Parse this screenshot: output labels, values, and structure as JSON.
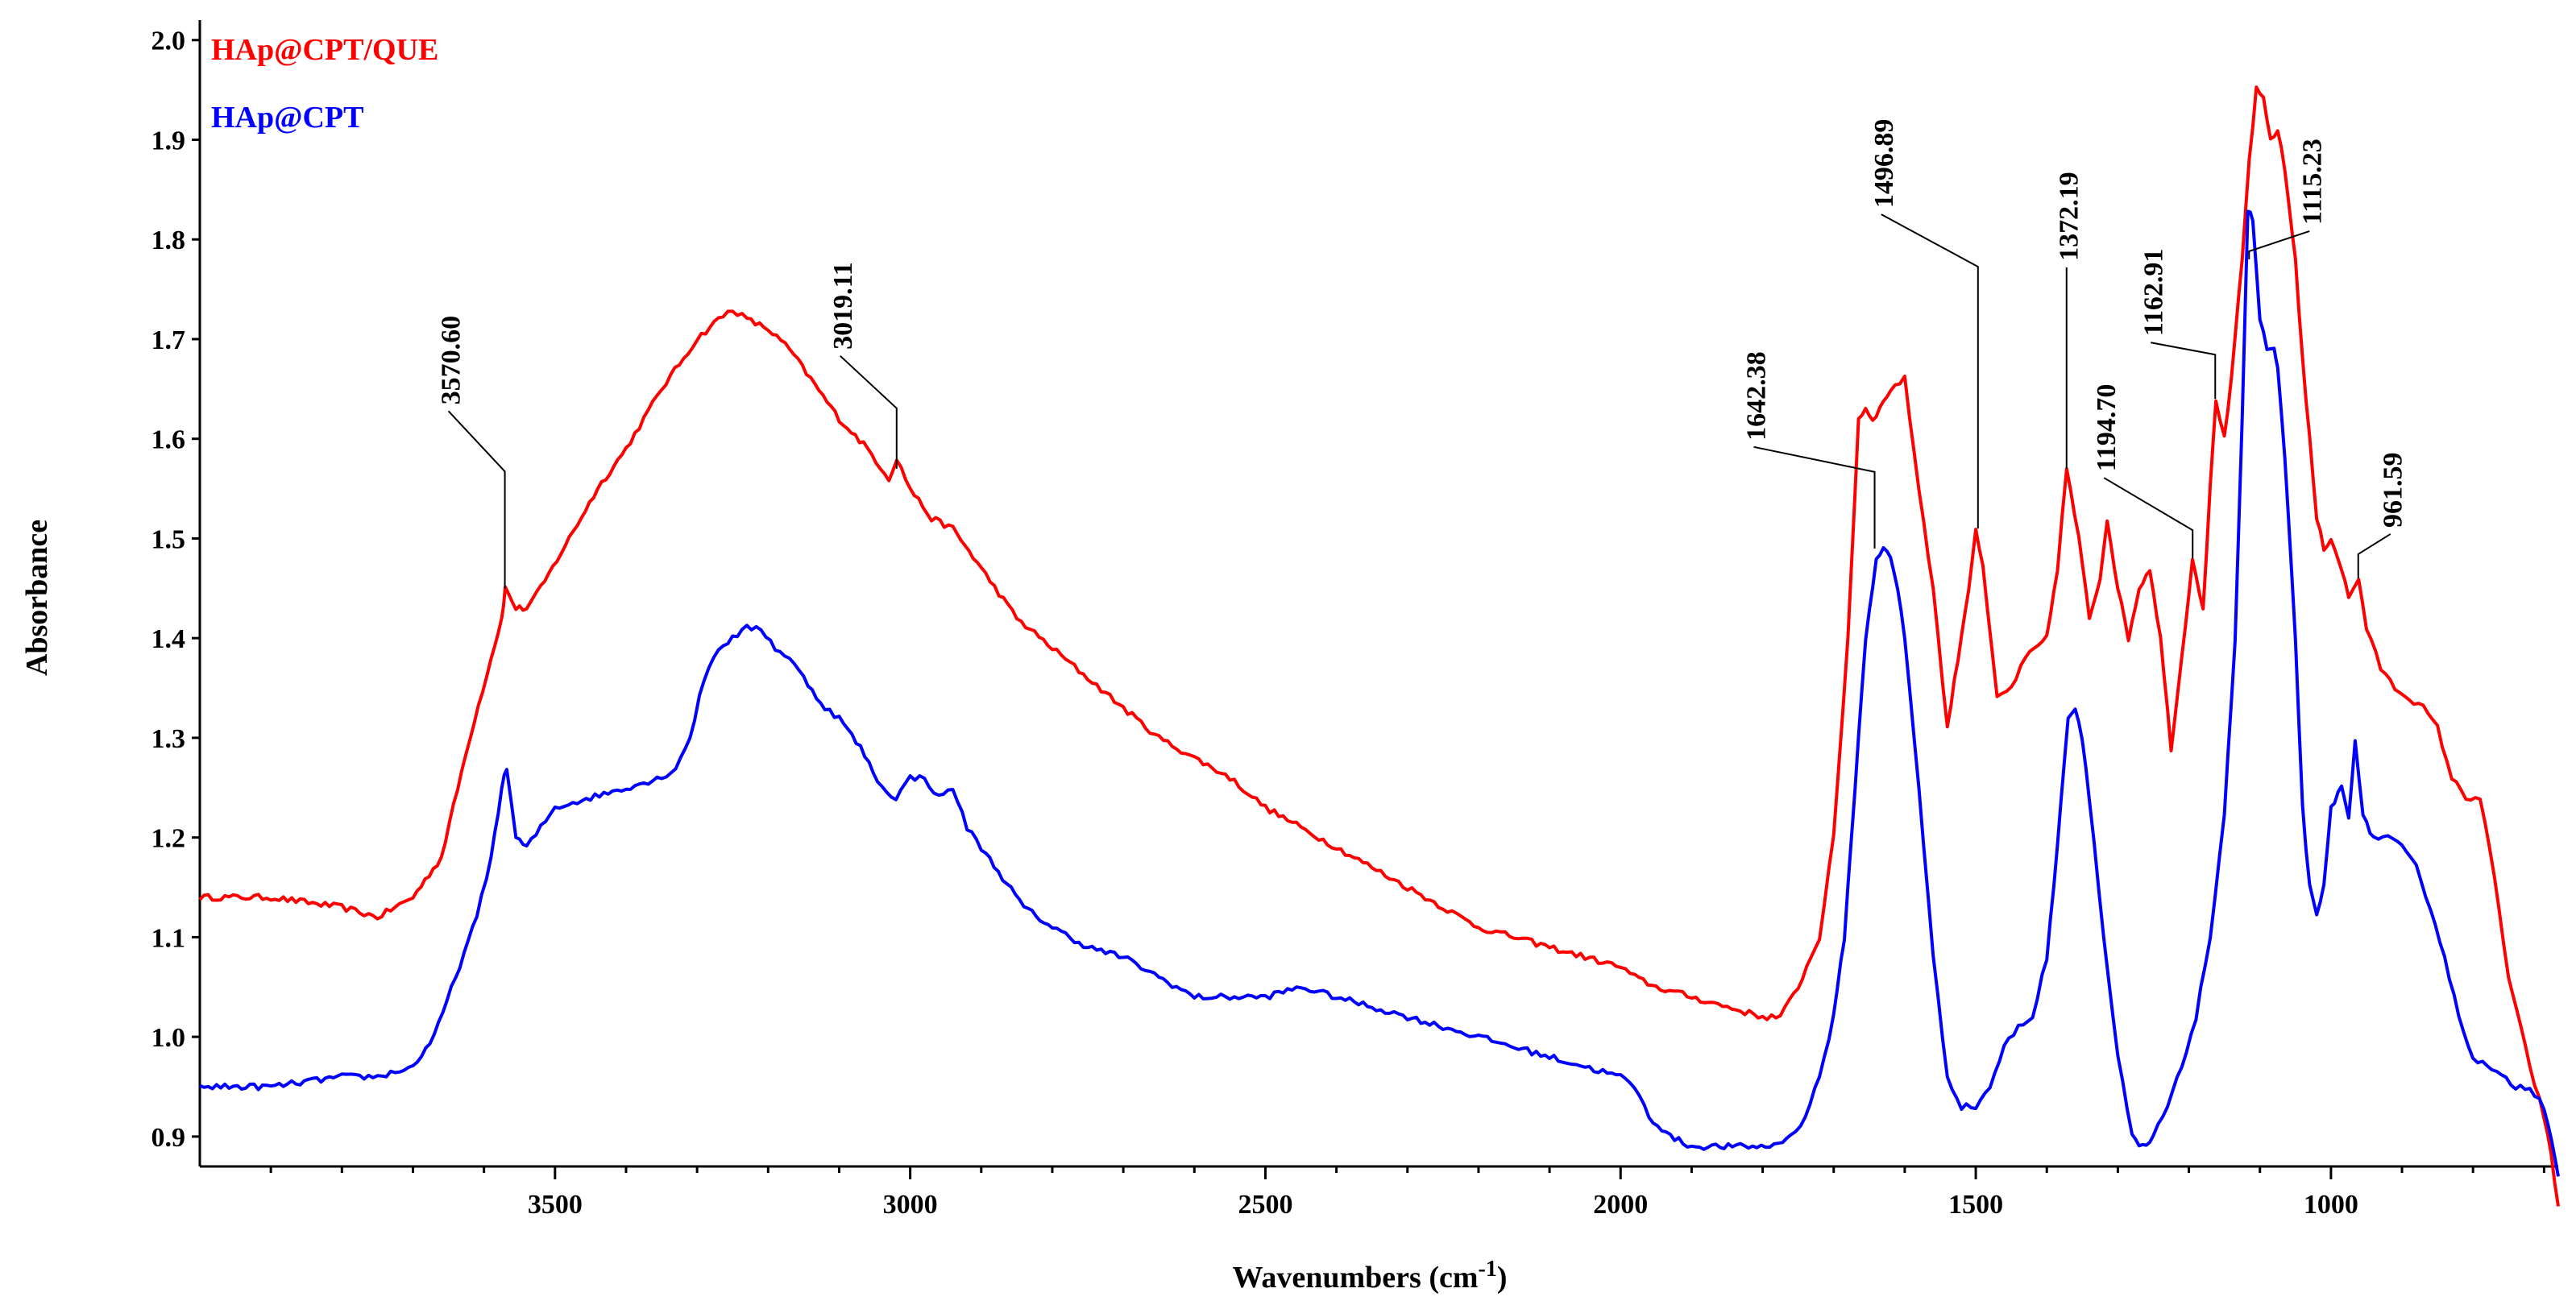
{
  "chart_data": {
    "type": "line",
    "xlabel": "Wavenumbers (cm",
    "xlabel_sup": "-1",
    "xlabel_close": ")",
    "ylabel": "Absorbance",
    "x_reversed": true,
    "xlim": [
      4000,
      680
    ],
    "ylim": [
      0.87,
      2.02
    ],
    "xticks": [
      3500,
      3000,
      2500,
      2000,
      1500,
      1000
    ],
    "yticks": [
      0.9,
      1.0,
      1.1,
      1.2,
      1.3,
      1.4,
      1.5,
      1.6,
      1.7,
      1.8,
      1.9,
      2.0
    ],
    "ytick_labels": [
      "0.9",
      "1.0",
      "1.1",
      "1.2",
      "1.3",
      "1.4",
      "1.5",
      "1.6",
      "1.7",
      "1.8",
      "1.9",
      "2.0"
    ],
    "legend_position": "top-left",
    "series": [
      {
        "name": "HAp@CPT/QUE",
        "color": "#ff0000",
        "x": [
          4000,
          3900,
          3800,
          3750,
          3700,
          3660,
          3620,
          3590,
          3575,
          3570,
          3555,
          3540,
          3520,
          3480,
          3440,
          3400,
          3350,
          3300,
          3270,
          3250,
          3230,
          3200,
          3170,
          3140,
          3100,
          3060,
          3030,
          3019,
          3000,
          2970,
          2940,
          2900,
          2850,
          2800,
          2750,
          2700,
          2650,
          2600,
          2550,
          2500,
          2450,
          2400,
          2350,
          2300,
          2250,
          2200,
          2150,
          2100,
          2050,
          2000,
          1980,
          1950,
          1900,
          1850,
          1800,
          1775,
          1750,
          1720,
          1700,
          1680,
          1665,
          1655,
          1645,
          1635,
          1620,
          1600,
          1580,
          1560,
          1540,
          1525,
          1510,
          1500,
          1490,
          1470,
          1450,
          1430,
          1400,
          1385,
          1372,
          1355,
          1340,
          1325,
          1315,
          1300,
          1285,
          1270,
          1255,
          1240,
          1225,
          1210,
          1195,
          1180,
          1170,
          1162,
          1150,
          1140,
          1125,
          1115,
          1105,
          1095,
          1085,
          1075,
          1065,
          1050,
          1040,
          1030,
          1020,
          1010,
          1000,
          985,
          975,
          961,
          950,
          930,
          910,
          890,
          870,
          850,
          830,
          810,
          790,
          770,
          750,
          720,
          700,
          690,
          680
        ],
        "values": [
          1.14,
          1.14,
          1.13,
          1.12,
          1.14,
          1.18,
          1.3,
          1.38,
          1.42,
          1.45,
          1.43,
          1.43,
          1.45,
          1.5,
          1.55,
          1.59,
          1.65,
          1.7,
          1.72,
          1.73,
          1.72,
          1.71,
          1.69,
          1.66,
          1.62,
          1.59,
          1.56,
          1.58,
          1.55,
          1.52,
          1.51,
          1.47,
          1.42,
          1.39,
          1.36,
          1.33,
          1.3,
          1.28,
          1.26,
          1.23,
          1.21,
          1.19,
          1.17,
          1.15,
          1.13,
          1.11,
          1.1,
          1.09,
          1.08,
          1.07,
          1.06,
          1.05,
          1.04,
          1.03,
          1.02,
          1.02,
          1.05,
          1.1,
          1.2,
          1.4,
          1.62,
          1.63,
          1.62,
          1.63,
          1.65,
          1.66,
          1.55,
          1.45,
          1.31,
          1.38,
          1.45,
          1.51,
          1.47,
          1.34,
          1.35,
          1.38,
          1.4,
          1.47,
          1.57,
          1.5,
          1.42,
          1.46,
          1.52,
          1.45,
          1.4,
          1.45,
          1.47,
          1.4,
          1.29,
          1.38,
          1.48,
          1.43,
          1.55,
          1.64,
          1.6,
          1.66,
          1.78,
          1.88,
          1.95,
          1.94,
          1.9,
          1.91,
          1.87,
          1.78,
          1.68,
          1.6,
          1.52,
          1.49,
          1.5,
          1.47,
          1.44,
          1.46,
          1.41,
          1.37,
          1.35,
          1.34,
          1.33,
          1.31,
          1.26,
          1.24,
          1.24,
          1.16,
          1.06,
          0.97,
          0.92,
          0.88,
          0.83
        ]
      },
      {
        "name": "HAp@CPT",
        "color": "#0000ff",
        "x": [
          4000,
          3900,
          3800,
          3750,
          3700,
          3670,
          3640,
          3610,
          3590,
          3575,
          3568,
          3555,
          3540,
          3520,
          3500,
          3450,
          3400,
          3350,
          3330,
          3310,
          3290,
          3270,
          3250,
          3230,
          3210,
          3190,
          3170,
          3150,
          3120,
          3100,
          3070,
          3040,
          3020,
          3000,
          2980,
          2960,
          2940,
          2920,
          2900,
          2870,
          2840,
          2800,
          2750,
          2700,
          2650,
          2600,
          2550,
          2500,
          2450,
          2400,
          2350,
          2300,
          2250,
          2200,
          2150,
          2100,
          2050,
          2000,
          1980,
          1960,
          1930,
          1900,
          1860,
          1820,
          1790,
          1760,
          1740,
          1720,
          1700,
          1685,
          1670,
          1655,
          1640,
          1630,
          1620,
          1610,
          1600,
          1580,
          1560,
          1540,
          1520,
          1500,
          1480,
          1460,
          1440,
          1420,
          1400,
          1390,
          1380,
          1370,
          1360,
          1350,
          1340,
          1320,
          1300,
          1280,
          1270,
          1260,
          1250,
          1230,
          1210,
          1190,
          1170,
          1150,
          1135,
          1125,
          1117,
          1110,
          1100,
          1090,
          1080,
          1075,
          1065,
          1050,
          1040,
          1030,
          1020,
          1010,
          1000,
          985,
          975,
          966,
          955,
          940,
          920,
          900,
          880,
          860,
          840,
          820,
          800,
          780,
          760,
          740,
          720,
          700,
          690,
          680
        ],
        "values": [
          0.95,
          0.95,
          0.96,
          0.96,
          0.97,
          1.0,
          1.06,
          1.12,
          1.18,
          1.25,
          1.27,
          1.2,
          1.19,
          1.21,
          1.23,
          1.24,
          1.25,
          1.26,
          1.27,
          1.3,
          1.36,
          1.39,
          1.4,
          1.41,
          1.41,
          1.39,
          1.38,
          1.36,
          1.33,
          1.32,
          1.29,
          1.25,
          1.24,
          1.26,
          1.26,
          1.24,
          1.25,
          1.21,
          1.19,
          1.16,
          1.13,
          1.11,
          1.09,
          1.08,
          1.06,
          1.04,
          1.04,
          1.04,
          1.05,
          1.04,
          1.03,
          1.02,
          1.01,
          1.0,
          0.99,
          0.98,
          0.97,
          0.96,
          0.95,
          0.92,
          0.9,
          0.89,
          0.89,
          0.89,
          0.89,
          0.9,
          0.92,
          0.96,
          1.02,
          1.1,
          1.25,
          1.4,
          1.48,
          1.49,
          1.48,
          1.45,
          1.4,
          1.25,
          1.08,
          0.96,
          0.93,
          0.93,
          0.95,
          0.99,
          1.01,
          1.02,
          1.08,
          1.15,
          1.24,
          1.32,
          1.33,
          1.3,
          1.24,
          1.1,
          0.98,
          0.9,
          0.89,
          0.89,
          0.9,
          0.93,
          0.97,
          1.02,
          1.1,
          1.22,
          1.4,
          1.62,
          1.83,
          1.82,
          1.72,
          1.69,
          1.69,
          1.67,
          1.58,
          1.4,
          1.23,
          1.15,
          1.12,
          1.15,
          1.23,
          1.25,
          1.22,
          1.3,
          1.22,
          1.2,
          1.2,
          1.19,
          1.17,
          1.13,
          1.08,
          1.02,
          0.98,
          0.97,
          0.96,
          0.95,
          0.95,
          0.93,
          0.9,
          0.86
        ]
      }
    ],
    "annotations": [
      {
        "text": "3570.60",
        "x": 3570.6,
        "y": 1.45
      },
      {
        "text": "3019.11",
        "x": 3019.11,
        "y": 1.57
      },
      {
        "text": "1642.38",
        "x": 1642.38,
        "y": 1.49
      },
      {
        "text": "1496.89",
        "x": 1496.89,
        "y": 1.51
      },
      {
        "text": "1372.19",
        "x": 1372.19,
        "y": 1.57
      },
      {
        "text": "1194.70",
        "x": 1194.7,
        "y": 1.48
      },
      {
        "text": "1162.91",
        "x": 1162.91,
        "y": 1.64
      },
      {
        "text": "1115.23",
        "x": 1115.23,
        "y": 1.78
      },
      {
        "text": "961.59",
        "x": 961.59,
        "y": 1.46
      }
    ]
  }
}
